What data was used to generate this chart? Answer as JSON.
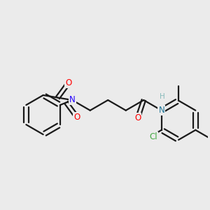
{
  "bg_color": "#ebebeb",
  "bond_color": "#1a1a1a",
  "bond_width": 1.6,
  "atom_colors": {
    "O": "#ff0000",
    "N_blue": "#2200ff",
    "N_teal": "#227799",
    "Cl": "#44aa44",
    "H": "#88bbbb",
    "C": "#1a1a1a"
  },
  "font_size": 8.5
}
